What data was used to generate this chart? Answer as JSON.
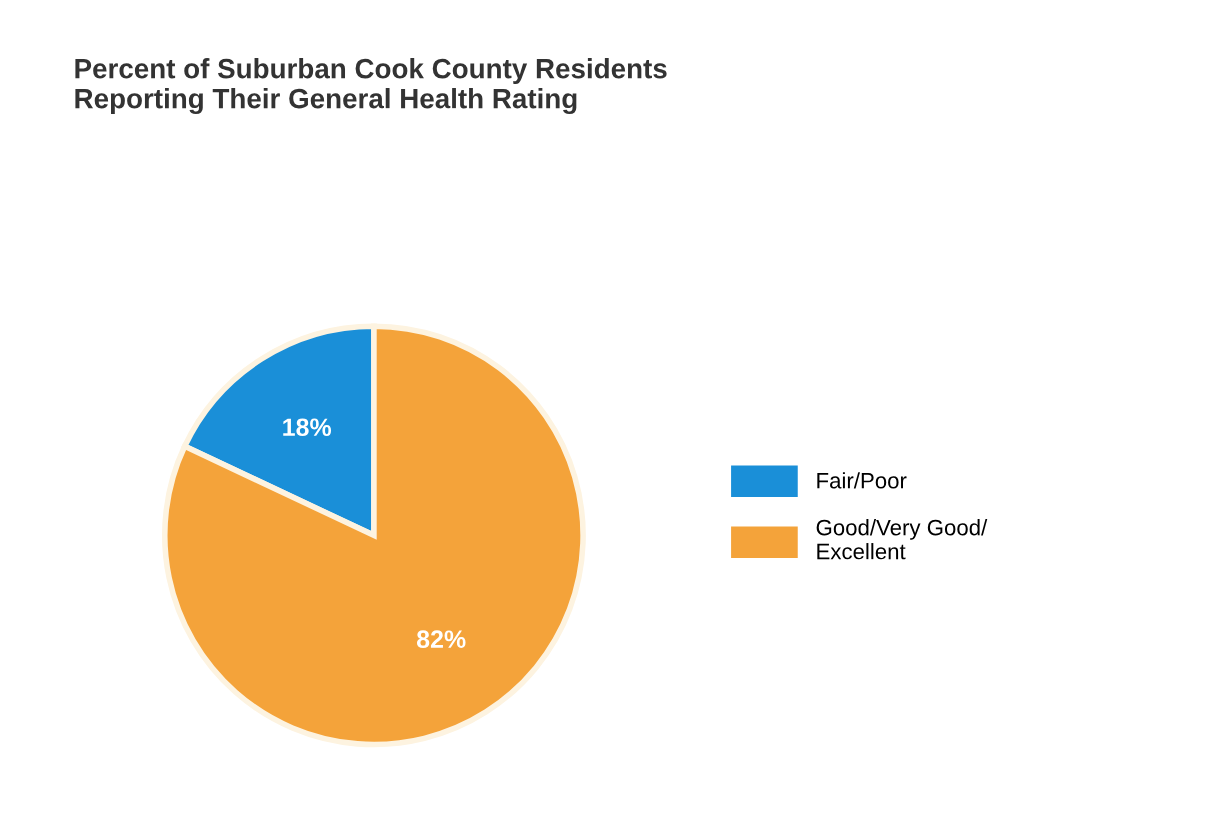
{
  "chart_data": {
    "type": "pie",
    "title": "Percent of Suburban Cook County Residents\nReporting Their General Health Rating",
    "categories": [
      "Fair/Poor",
      "Good/Very Good/\nExcellent"
    ],
    "values": [
      18,
      82
    ],
    "value_labels": [
      "18%",
      "82%"
    ],
    "colors": [
      "#1a8fd8",
      "#f4a33a"
    ],
    "legend": "right"
  }
}
